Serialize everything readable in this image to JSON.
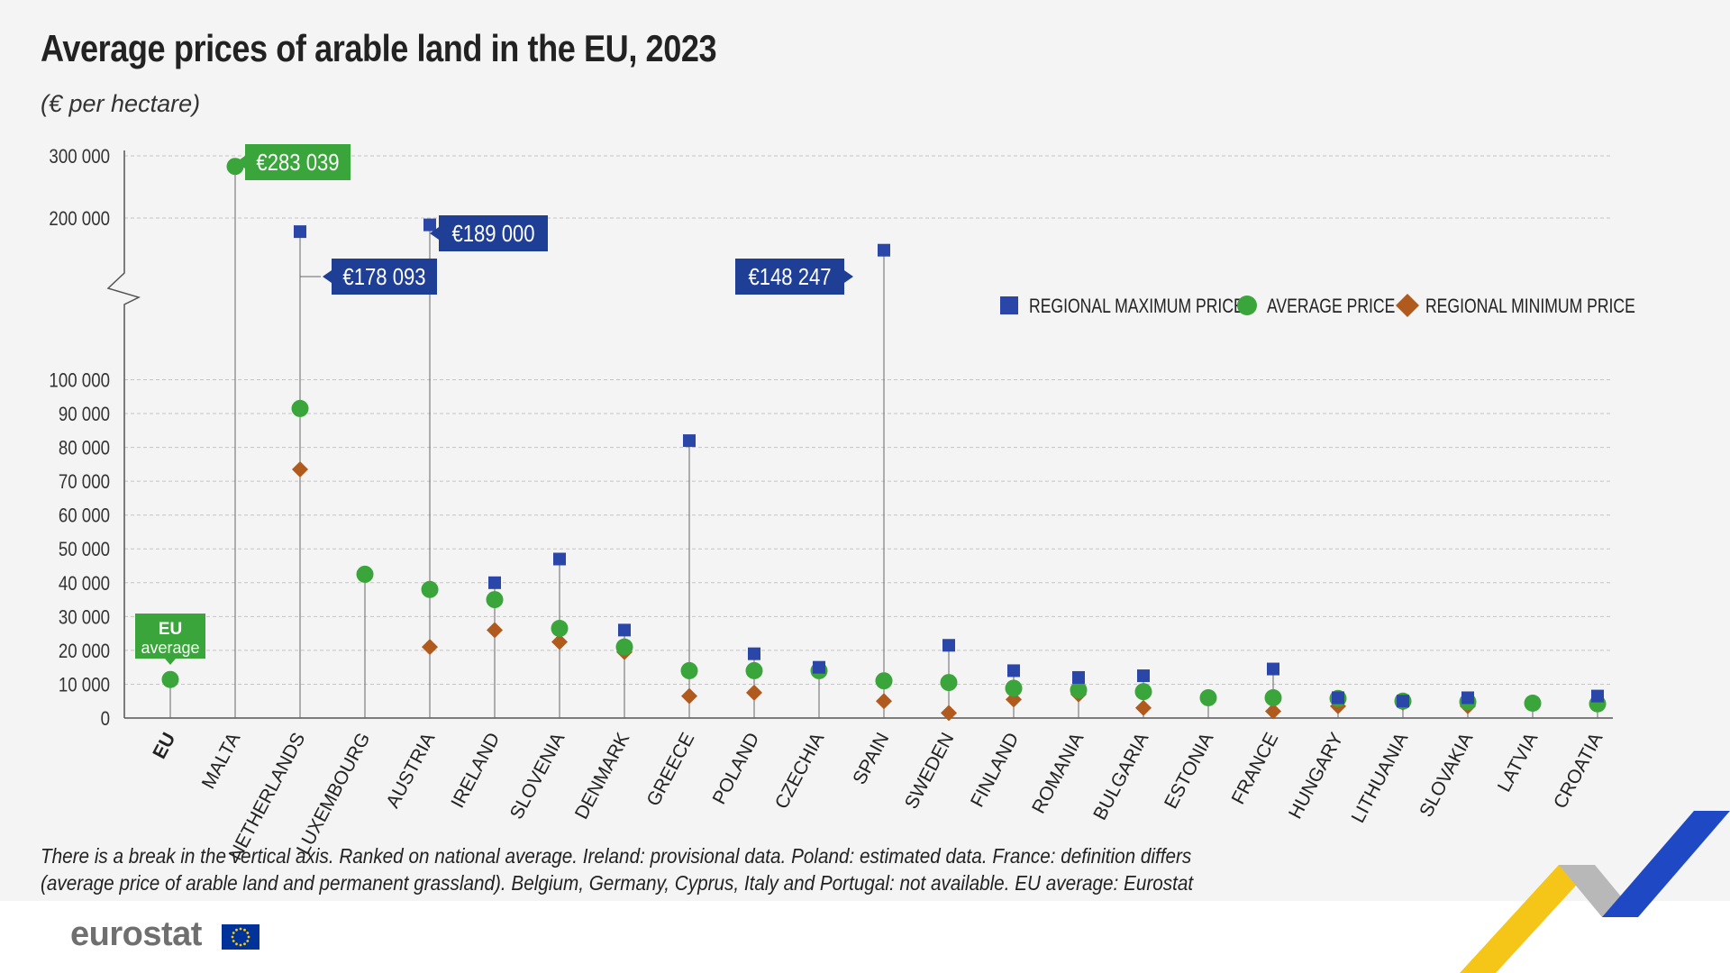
{
  "title": "Average prices of arable land in the EU, 2023",
  "subtitle": "(€ per hectare)",
  "footnote": "There is a break in the vertical axis. Ranked on national average. Ireland: provisional data. Poland: estimated data. France: definition differs (average price of arable land and permanent grassland). Belgium, Germany, Cyprus, Italy and Portugal: not available. EU average: Eurostat estimate",
  "brand": "eurostat",
  "eu_label_line1": "EU",
  "eu_label_line2": "average",
  "colors": {
    "max": "#2a46a8",
    "avg": "#3aa53a",
    "min": "#b05a1e",
    "label_blue": "#1f3e96",
    "label_green": "#3aa53a",
    "grid": "#c4c4c4",
    "axis": "#555555"
  },
  "chart_data": {
    "type": "scatter",
    "title": "Average prices of arable land in the EU, 2023",
    "subtitle": "(€ per hectare)",
    "axis_break": true,
    "y_ticks_lower": [
      0,
      10000,
      20000,
      30000,
      40000,
      50000,
      60000,
      70000,
      80000,
      90000,
      100000
    ],
    "y_tick_labels_lower": [
      "0",
      "10 000",
      "20 000",
      "30 000",
      "40 000",
      "50 000",
      "60 000",
      "70 000",
      "80 000",
      "90 000",
      "100 000"
    ],
    "y_ticks_upper": [
      200000,
      300000
    ],
    "y_tick_labels_upper": [
      "200 000",
      "300 000"
    ],
    "legend_position": "top-right",
    "categories": [
      "EU",
      "MALTA",
      "NETHERLANDS",
      "LUXEMBOURG",
      "AUSTRIA",
      "IRELAND",
      "SLOVENIA",
      "DENMARK",
      "GREECE",
      "POLAND",
      "CZECHIA",
      "SPAIN",
      "SWEDEN",
      "FINLAND",
      "ROMANIA",
      "BULGARIA",
      "ESTONIA",
      "FRANCE",
      "HUNGARY",
      "LITHUANIA",
      "SLOVAKIA",
      "LATVIA",
      "CROATIA"
    ],
    "series": [
      {
        "name": "REGIONAL MAXIMUM PRICE",
        "marker": "square",
        "values": [
          null,
          null,
          178093,
          null,
          189000,
          40000,
          47000,
          26000,
          82000,
          19000,
          15000,
          148247,
          21500,
          14000,
          12000,
          12500,
          null,
          14500,
          6000,
          5000,
          6000,
          null,
          6500
        ]
      },
      {
        "name": "AVERAGE PRICE",
        "marker": "circle",
        "values": [
          11400,
          283039,
          91500,
          42500,
          38000,
          35000,
          26500,
          21000,
          14000,
          14000,
          14000,
          11000,
          10500,
          8800,
          8300,
          7800,
          6000,
          6000,
          5800,
          5000,
          4800,
          4400,
          4200
        ]
      },
      {
        "name": "REGIONAL MINIMUM PRICE",
        "marker": "diamond",
        "values": [
          null,
          null,
          73500,
          null,
          21000,
          26000,
          22500,
          19500,
          6500,
          7500,
          14000,
          5000,
          1500,
          5500,
          7000,
          3000,
          null,
          2000,
          3500,
          4500,
          3500,
          null,
          4000
        ]
      }
    ],
    "callouts": [
      {
        "label": "€283 039",
        "category": "MALTA",
        "value": 283039,
        "color": "green"
      },
      {
        "label": "€178 093",
        "category": "NETHERLANDS",
        "value": 178093,
        "color": "blue"
      },
      {
        "label": "€189 000",
        "category": "AUSTRIA",
        "value": 189000,
        "color": "blue"
      },
      {
        "label": "€148 247",
        "category": "SPAIN",
        "value": 148247,
        "color": "blue"
      }
    ]
  }
}
